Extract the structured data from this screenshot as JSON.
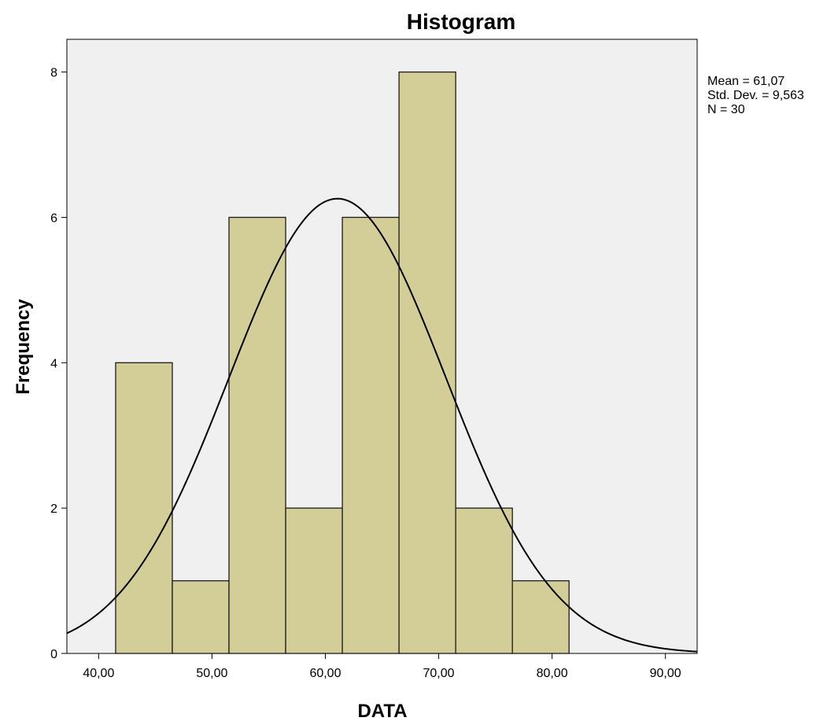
{
  "chart_data": {
    "type": "bar",
    "title": "Histogram",
    "xlabel": "DATA",
    "ylabel": "Frequency",
    "x_tick_labels": [
      "40,00",
      "50,00",
      "60,00",
      "70,00",
      "80,00",
      "90,00"
    ],
    "x_ticks": [
      40,
      50,
      60,
      70,
      80,
      90
    ],
    "y_tick_labels": [
      "0",
      "2",
      "4",
      "6",
      "8"
    ],
    "y_ticks": [
      0,
      2,
      4,
      6,
      8
    ],
    "xlim": [
      37.2,
      92.8
    ],
    "ylim": [
      0,
      8.45
    ],
    "bin_width": 5,
    "bins": [
      {
        "start": 41.5,
        "end": 46.5,
        "count": 4
      },
      {
        "start": 46.5,
        "end": 51.5,
        "count": 1
      },
      {
        "start": 51.5,
        "end": 56.5,
        "count": 6
      },
      {
        "start": 56.5,
        "end": 61.5,
        "count": 2
      },
      {
        "start": 61.5,
        "end": 66.5,
        "count": 6
      },
      {
        "start": 66.5,
        "end": 71.5,
        "count": 8
      },
      {
        "start": 71.5,
        "end": 76.5,
        "count": 2
      },
      {
        "start": 76.5,
        "end": 81.5,
        "count": 1
      }
    ],
    "normal_curve": {
      "mean": 61.07,
      "sd": 9.563,
      "n": 30
    },
    "stats": {
      "mean": "Mean = 61,07",
      "sd": "Std. Dev. = 9,563",
      "n": "N = 30"
    },
    "colors": {
      "plot_background": "#f0f0f0",
      "bar_fill": "#d3ce97",
      "bar_stroke": "#1a1a1a",
      "curve": "#000000",
      "axis": "#000000"
    },
    "grid": false,
    "legend": "none"
  }
}
